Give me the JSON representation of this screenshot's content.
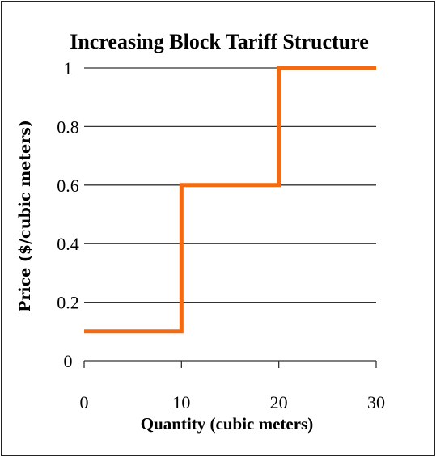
{
  "chart_data": {
    "type": "line",
    "title": "Increasing Block Tariff Structure",
    "xlabel": "Quantity (cubic meters)",
    "ylabel": "Price ($/cubic meters)",
    "xlim": [
      0,
      30
    ],
    "ylim": [
      0,
      1
    ],
    "x_ticks": [
      "0",
      "10",
      "20",
      "30"
    ],
    "y_ticks": [
      "0",
      "0.2",
      "0.4",
      "0.6",
      "0.8",
      "1"
    ],
    "grid": "horizontal",
    "step": "post",
    "series": [
      {
        "x": [
          0,
          10,
          20,
          30
        ],
        "values": [
          0.1,
          0.6,
          1.0,
          1.0
        ],
        "color": "#f46a10"
      }
    ]
  }
}
